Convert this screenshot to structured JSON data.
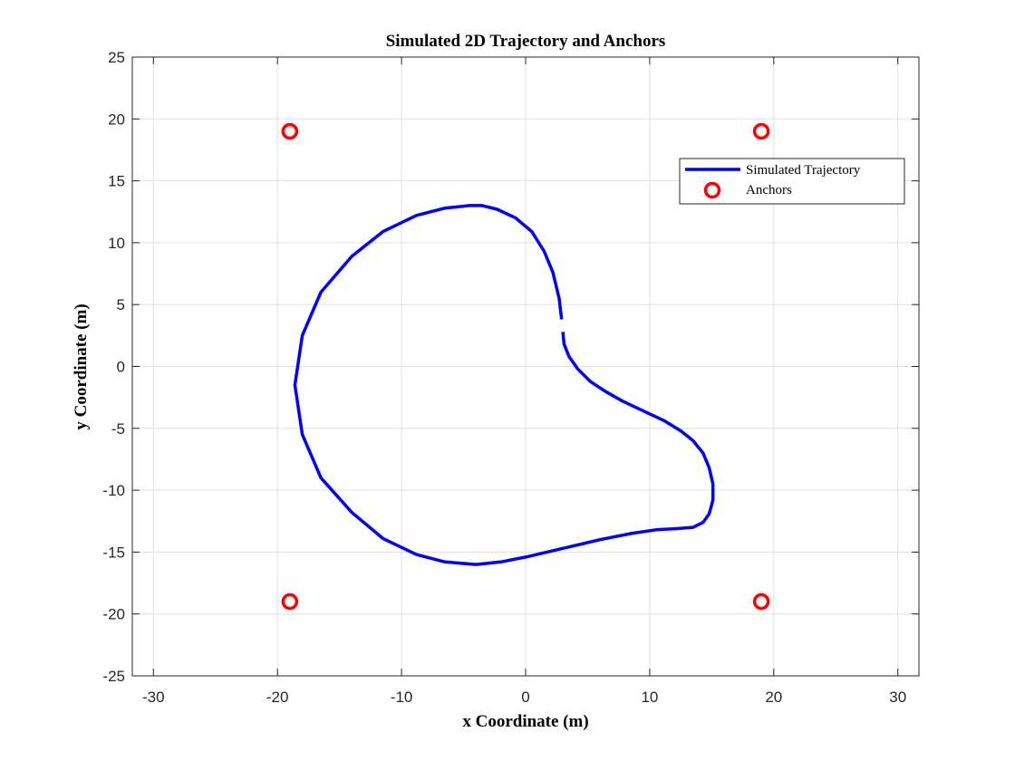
{
  "chart_data": {
    "type": "line",
    "title": "Simulated 2D Trajectory and Anchors",
    "xlabel": "x Coordinate (m)",
    "ylabel": "y Coordinate (m)",
    "xlim": [
      -31.7,
      31.7
    ],
    "ylim": [
      -25,
      25
    ],
    "xticks": [
      -30,
      -20,
      -10,
      0,
      10,
      20,
      30
    ],
    "yticks": [
      -25,
      -20,
      -15,
      -10,
      -5,
      0,
      5,
      10,
      15,
      20,
      25
    ],
    "grid": true,
    "legend_position": "top-right",
    "series": [
      {
        "name": "Simulated Trajectory",
        "style": "line",
        "color": "#0000ff",
        "points": [
          [
            3.0,
            2.8
          ],
          [
            3.1,
            1.8
          ],
          [
            3.5,
            0.8
          ],
          [
            4.2,
            -0.2
          ],
          [
            5.2,
            -1.2
          ],
          [
            6.4,
            -2.0
          ],
          [
            7.8,
            -2.8
          ],
          [
            9.5,
            -3.6
          ],
          [
            11.2,
            -4.4
          ],
          [
            12.5,
            -5.2
          ],
          [
            13.5,
            -6.0
          ],
          [
            14.3,
            -7.0
          ],
          [
            14.8,
            -8.2
          ],
          [
            15.1,
            -9.5
          ],
          [
            15.1,
            -10.8
          ],
          [
            14.8,
            -11.9
          ],
          [
            14.3,
            -12.6
          ],
          [
            13.5,
            -13.0
          ],
          [
            12.3,
            -13.1
          ],
          [
            10.5,
            -13.2
          ],
          [
            8.5,
            -13.5
          ],
          [
            6.0,
            -14.0
          ],
          [
            3.0,
            -14.7
          ],
          [
            0.0,
            -15.4
          ],
          [
            -2.0,
            -15.8
          ],
          [
            -4.0,
            -16.0
          ],
          [
            -6.5,
            -15.8
          ],
          [
            -8.8,
            -15.2
          ],
          [
            -11.5,
            -13.9
          ],
          [
            -14.0,
            -11.8
          ],
          [
            -16.5,
            -9.0
          ],
          [
            -18.0,
            -5.5
          ],
          [
            -18.6,
            -1.5
          ],
          [
            -18.0,
            2.5
          ],
          [
            -16.5,
            6.0
          ],
          [
            -14.0,
            8.9
          ],
          [
            -11.5,
            10.9
          ],
          [
            -8.8,
            12.2
          ],
          [
            -6.5,
            12.8
          ],
          [
            -4.5,
            13.0
          ],
          [
            -3.5,
            13.0
          ],
          [
            -2.3,
            12.7
          ],
          [
            -0.8,
            12.0
          ],
          [
            0.5,
            10.9
          ],
          [
            1.5,
            9.3
          ],
          [
            2.2,
            7.6
          ],
          [
            2.7,
            5.5
          ],
          [
            2.9,
            3.8
          ]
        ]
      },
      {
        "name": "Anchors",
        "style": "marker-circle",
        "color": "#ff0000",
        "points": [
          [
            -19,
            19
          ],
          [
            19,
            19
          ],
          [
            -19,
            -19
          ],
          [
            19,
            -19
          ]
        ]
      }
    ]
  }
}
